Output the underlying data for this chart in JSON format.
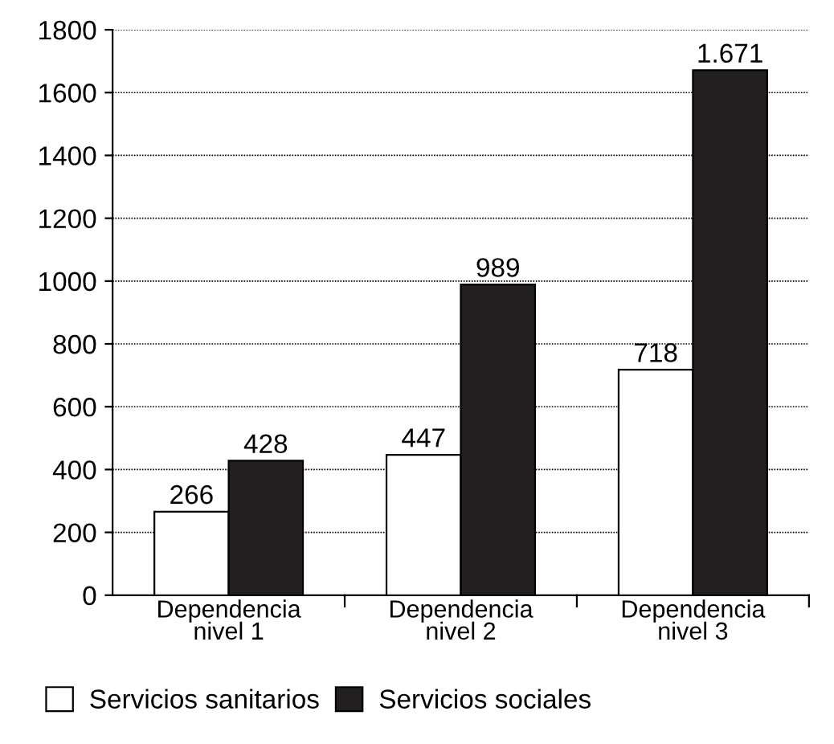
{
  "chart_data": {
    "type": "bar",
    "categories": [
      "Dependencia\nnivel 1",
      "Dependencia\nnivel 2",
      "Dependencia\nnivel 3"
    ],
    "series": [
      {
        "name": "Servicios sanitarios",
        "color": "#ffffff",
        "values": [
          266,
          447,
          718
        ],
        "value_labels": [
          "266",
          "447",
          "718"
        ]
      },
      {
        "name": "Servicios sociales",
        "color": "#231f20",
        "values": [
          428,
          989,
          1671
        ],
        "value_labels": [
          "428",
          "989",
          "1.671"
        ]
      }
    ],
    "ylim": [
      0,
      1800
    ],
    "yticks": [
      0,
      200,
      400,
      600,
      800,
      1000,
      1200,
      1400,
      1600,
      1800
    ],
    "grid": "y",
    "legend": "bottom"
  }
}
